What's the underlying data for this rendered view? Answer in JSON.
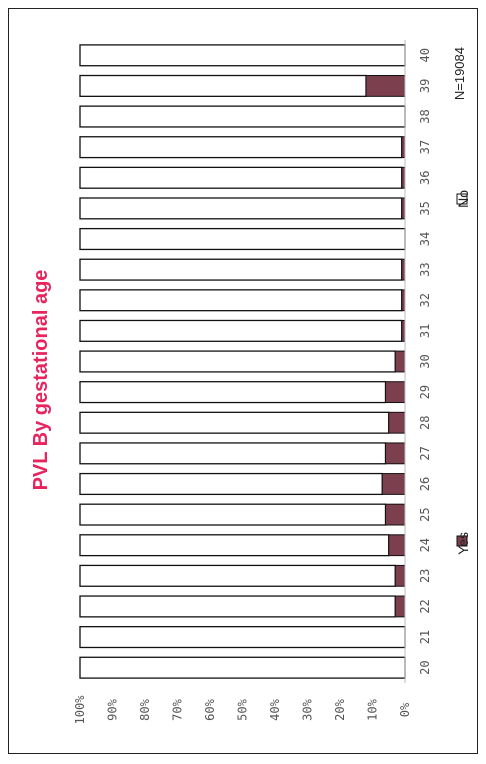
{
  "chart_data": {
    "type": "bar",
    "stacked": true,
    "orientation": "horizontal-bars-rotated-page",
    "title": "PVL By gestational age",
    "note": "N=19084",
    "categories": [
      "20",
      "21",
      "22",
      "23",
      "24",
      "25",
      "26",
      "27",
      "28",
      "29",
      "30",
      "31",
      "32",
      "33",
      "34",
      "35",
      "36",
      "37",
      "38",
      "39",
      "40"
    ],
    "series": [
      {
        "name": "Yes",
        "color": "#7b3f4d",
        "values": [
          0,
          0,
          3,
          3,
          5,
          6,
          7,
          6,
          5,
          6,
          3,
          1,
          1,
          1,
          0,
          1,
          1,
          1,
          0,
          12,
          0
        ]
      },
      {
        "name": "No",
        "color": "#ffffff",
        "values": [
          100,
          100,
          97,
          97,
          95,
          94,
          93,
          94,
          95,
          94,
          97,
          99,
          99,
          99,
          100,
          99,
          99,
          99,
          100,
          88,
          100
        ]
      }
    ],
    "value_axis_ticks": [
      "0%",
      "10%",
      "20%",
      "30%",
      "40%",
      "50%",
      "60%",
      "70%",
      "80%",
      "90%",
      "100%"
    ],
    "ylim": [
      0,
      100
    ],
    "legend_placement": "bottom",
    "grid": false
  }
}
